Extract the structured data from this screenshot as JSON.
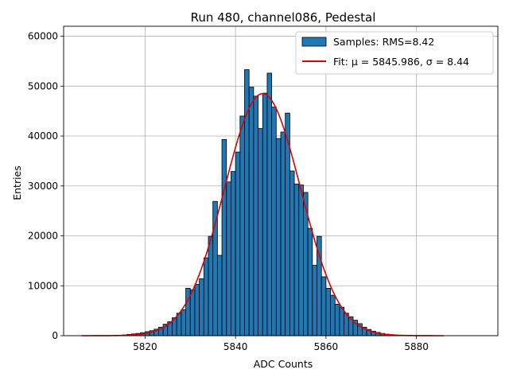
{
  "chart_data": {
    "type": "bar",
    "title": "Run 480, channel086, Pedestal",
    "xlabel": "ADC Counts",
    "ylabel": "Entries",
    "xlim": [
      5802,
      5898
    ],
    "ylim": [
      0,
      62000
    ],
    "x_ticks": [
      5820,
      5840,
      5860,
      5880
    ],
    "y_ticks": [
      0,
      10000,
      20000,
      30000,
      40000,
      50000,
      60000
    ],
    "grid": true,
    "legend_position": "top-right",
    "colors": {
      "bars": "#1f77b4",
      "bar_edge": "#000000",
      "fit": "#e00000",
      "grid": "#b0b0b0"
    },
    "series": [
      {
        "name": "Samples: RMS=8.42",
        "kind": "histogram",
        "bin_width": 1,
        "bin_start": [
          5815,
          5816,
          5817,
          5818,
          5819,
          5820,
          5821,
          5822,
          5823,
          5824,
          5825,
          5826,
          5827,
          5828,
          5829,
          5830,
          5831,
          5832,
          5833,
          5834,
          5835,
          5836,
          5837,
          5838,
          5839,
          5840,
          5841,
          5842,
          5843,
          5844,
          5845,
          5846,
          5847,
          5848,
          5849,
          5850,
          5851,
          5852,
          5853,
          5854,
          5855,
          5856,
          5857,
          5858,
          5859,
          5860,
          5861,
          5862,
          5863,
          5864,
          5865,
          5866,
          5867,
          5868,
          5869,
          5870,
          5871,
          5872,
          5873,
          5874,
          5875,
          5876
        ],
        "values": [
          150,
          250,
          350,
          450,
          600,
          800,
          1000,
          1300,
          1700,
          2300,
          2800,
          3600,
          4500,
          5200,
          9500,
          9200,
          10300,
          11400,
          15600,
          19900,
          26900,
          16100,
          39300,
          30800,
          32900,
          36800,
          44000,
          53300,
          49800,
          48000,
          41500,
          48600,
          52600,
          45800,
          39500,
          40800,
          44600,
          33000,
          30400,
          30200,
          28700,
          21500,
          14100,
          19900,
          11800,
          9500,
          8100,
          6300,
          5700,
          4500,
          3800,
          3100,
          2400,
          1700,
          1250,
          900,
          650,
          450,
          300,
          200,
          120,
          70
        ]
      },
      {
        "name": "Fit: μ = 5845.986, σ = 8.44",
        "kind": "gaussian_fit",
        "mu": 5845.986,
        "sigma": 8.44,
        "amplitude": 48500,
        "x_range": [
          5806,
          5886
        ]
      }
    ]
  }
}
